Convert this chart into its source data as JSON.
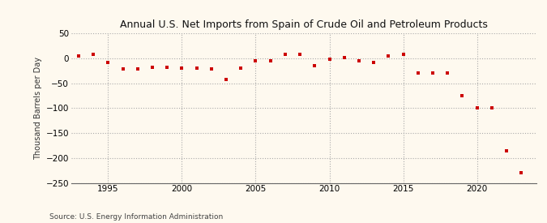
{
  "title": "Annual U.S. Net Imports from Spain of Crude Oil and Petroleum Products",
  "ylabel": "Thousand Barrels per Day",
  "source": "Source: U.S. Energy Information Administration",
  "years": [
    1993,
    1994,
    1995,
    1996,
    1997,
    1998,
    1999,
    2000,
    2001,
    2002,
    2003,
    2004,
    2005,
    2006,
    2007,
    2008,
    2009,
    2010,
    2011,
    2012,
    2013,
    2014,
    2015,
    2016,
    2017,
    2018,
    2019,
    2020,
    2021,
    2022,
    2023
  ],
  "values": [
    5,
    8,
    -8,
    -22,
    -22,
    -18,
    -18,
    -20,
    -20,
    -22,
    -42,
    -20,
    -5,
    -5,
    8,
    8,
    -15,
    -2,
    2,
    -5,
    -8,
    5,
    8,
    -30,
    -30,
    -30,
    -75,
    -100,
    -100,
    -185,
    -230
  ],
  "marker_color": "#cc0000",
  "bg_color": "#fef9ef",
  "grid_color": "#aaaaaa",
  "ylim": [
    -250,
    50
  ],
  "yticks": [
    50,
    0,
    -50,
    -100,
    -150,
    -200,
    -250
  ],
  "xlim": [
    1992.5,
    2024
  ],
  "xticks": [
    1995,
    2000,
    2005,
    2010,
    2015,
    2020
  ]
}
